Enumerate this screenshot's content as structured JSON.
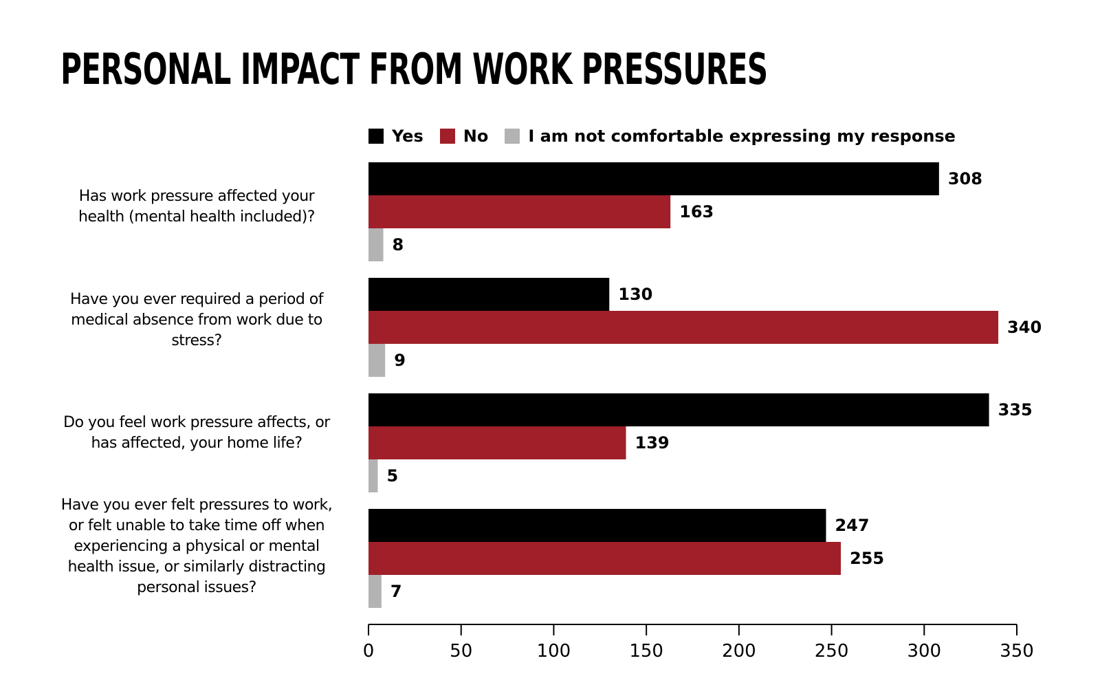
{
  "title": "PERSONAL IMPACT FROM WORK PRESSURES",
  "colors": {
    "yes": "#000000",
    "no": "#a01f29",
    "not_comfortable": "#b3b3b3"
  },
  "chart_data": {
    "type": "bar",
    "orientation": "horizontal",
    "title": "PERSONAL IMPACT FROM WORK PRESSURES",
    "legend_position": "top",
    "categories": [
      "Has work pressure affected your health (mental health included)?",
      "Have you ever required a period of medical absence from work due to stress?",
      "Do you feel work pressure affects, or has affected, your home life?",
      "Have you ever felt pressures to work, or felt unable to take time off when experiencing a physical or mental health issue, or similarly distracting personal issues?"
    ],
    "series": [
      {
        "name": "Yes",
        "values": [
          308,
          130,
          335,
          247
        ]
      },
      {
        "name": "No",
        "values": [
          163,
          340,
          139,
          255
        ]
      },
      {
        "name": "I am not comfortable expressing my response",
        "values": [
          8,
          9,
          5,
          7
        ]
      }
    ],
    "xlim": [
      0,
      350
    ],
    "xticks": [
      0,
      50,
      100,
      150,
      200,
      250,
      300,
      350
    ],
    "grid": false
  }
}
